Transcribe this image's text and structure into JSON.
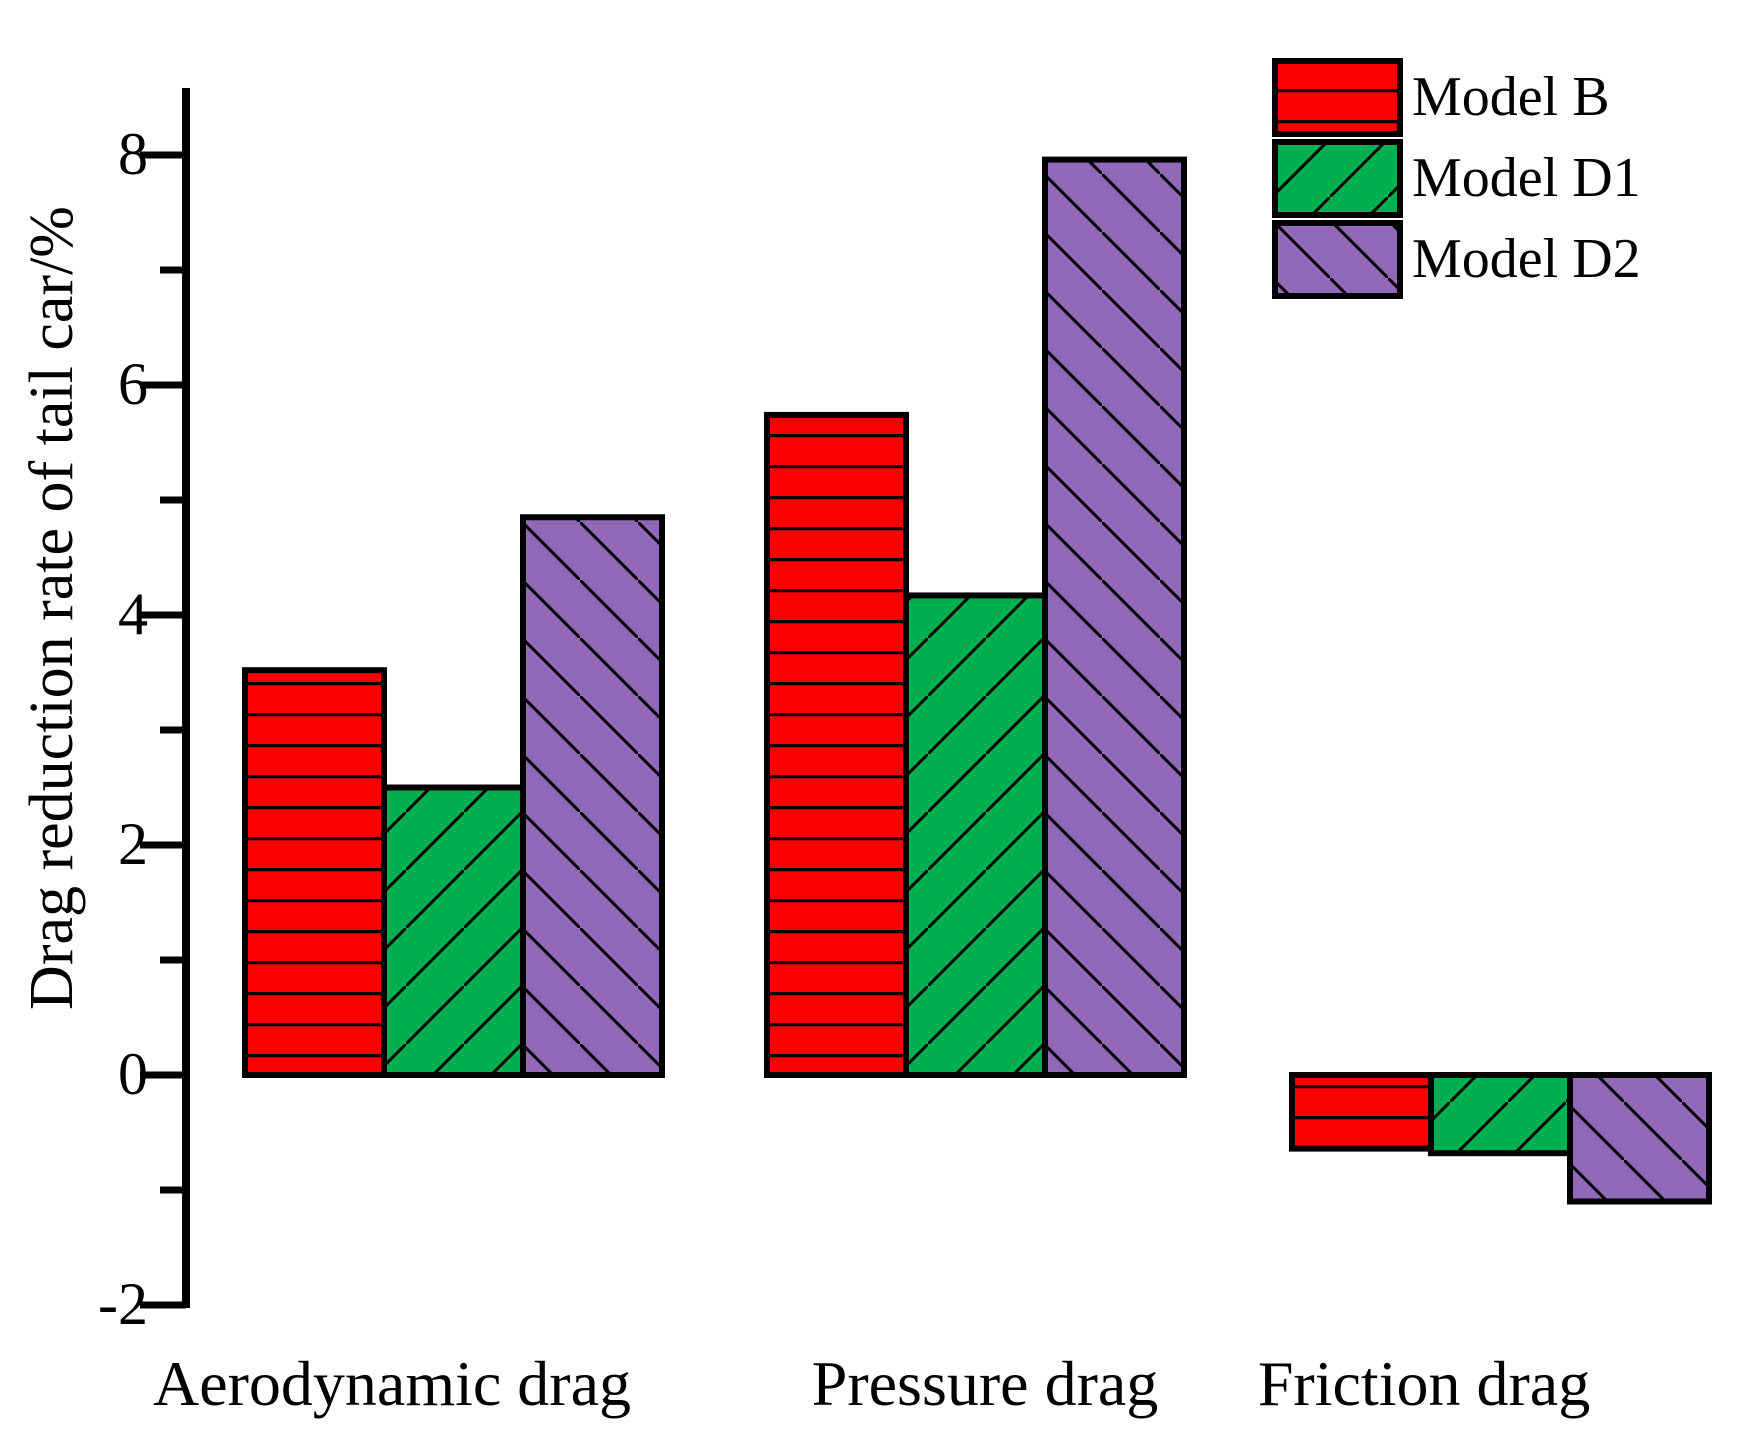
{
  "chart_data": {
    "type": "bar",
    "title": "",
    "categories": [
      "Aerodynamic drag",
      "Pressure drag",
      "Friction drag"
    ],
    "series": [
      {
        "name": "Model B",
        "color": "#fc0000",
        "hatch": "horizontal",
        "values": [
          3.52,
          5.74,
          -0.64
        ]
      },
      {
        "name": "Model D1",
        "color": "#00af50",
        "hatch": "diagonal-forward",
        "values": [
          2.5,
          4.17,
          -0.68
        ]
      },
      {
        "name": "Model D2",
        "color": "#9169b8",
        "hatch": "diagonal-backward",
        "values": [
          4.85,
          7.96,
          -1.1
        ]
      }
    ],
    "xlabel": "",
    "ylabel": "Drag reduction rate of tail car/%",
    "ylim": [
      -2,
      8.6
    ],
    "yticks_major": [
      8,
      6,
      4,
      2,
      0,
      -2
    ],
    "ytick_labels": [
      "8",
      "6",
      "4",
      "2",
      "0",
      "-2"
    ],
    "yticks_minor": [
      7,
      5,
      3,
      1,
      -1
    ],
    "grid": false,
    "legend_position": "top-right",
    "outline_color": "#000000"
  },
  "legend": {
    "items": [
      "Model B",
      "Model D1",
      "Model D2"
    ]
  }
}
